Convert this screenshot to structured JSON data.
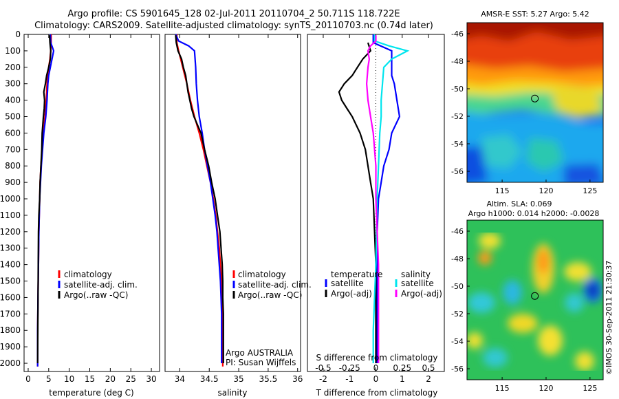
{
  "header": {
    "line1": "Argo profile: CS 5901645_128 02-Jul-2011 20110704_2 50.711S 118.722E",
    "line2": "Climatology: CARS2009. Satellite-adjusted climatology: synTS_20110703.nc (0.74d later)"
  },
  "colors": {
    "climatology": "#ff0000",
    "satellite": "#0000ff",
    "argo": "#000000",
    "sal_satellite": "#00e5ee",
    "sal_argo": "#ff00ff"
  },
  "legend_profile": {
    "climatology": "climatology",
    "satellite": "satellite-adj. clim.",
    "argo": "Argo(..raw -QC)"
  },
  "legend_diff": {
    "temperature": "temperature",
    "salinity": "salinity",
    "satellite": "satellite",
    "argo_adj": "Argo(-adj)"
  },
  "salinity_note": {
    "line1": "Argo AUSTRALIA",
    "line2": "PI: Susan Wijffels"
  },
  "map_sst": {
    "title": "AMSR-E SST: 5.27 Argo: 5.42"
  },
  "map_sla": {
    "title1": "Altim. SLA: 0.069",
    "title2": "Argo h1000: 0.014 h2000: -0.0028"
  },
  "credit": "©IMOS 30-Sep-2011 21:30:37",
  "chart_data": [
    {
      "type": "line",
      "xlabel": "temperature (deg C)",
      "xlim": [
        -1,
        32
      ],
      "ylim": [
        2050,
        0
      ],
      "x_ticks": [
        "0",
        "5",
        "10",
        "15",
        "20",
        "25",
        "30"
      ],
      "y_ticks": [
        "0",
        "100",
        "200",
        "300",
        "400",
        "500",
        "600",
        "700",
        "800",
        "900",
        "1000",
        "1100",
        "1200",
        "1300",
        "1400",
        "1500",
        "1600",
        "1700",
        "1800",
        "1900",
        "2000"
      ],
      "series": [
        {
          "name": "climatology",
          "color": "#ff0000",
          "points": [
            [
              5.6,
              0
            ],
            [
              5.6,
              50
            ],
            [
              5.5,
              100
            ],
            [
              5.3,
              150
            ],
            [
              5.0,
              200
            ],
            [
              4.8,
              250
            ],
            [
              4.6,
              300
            ],
            [
              4.4,
              400
            ],
            [
              4.1,
              500
            ],
            [
              3.7,
              600
            ],
            [
              3.4,
              700
            ],
            [
              3.1,
              800
            ],
            [
              2.9,
              900
            ],
            [
              2.8,
              1000
            ],
            [
              2.6,
              1200
            ],
            [
              2.5,
              1400
            ],
            [
              2.4,
              1600
            ],
            [
              2.3,
              1800
            ],
            [
              2.3,
              2020
            ]
          ]
        },
        {
          "name": "satellite-adj. clim.",
          "color": "#0000ff",
          "points": [
            [
              5.4,
              0
            ],
            [
              5.5,
              50
            ],
            [
              6.2,
              100
            ],
            [
              5.8,
              150
            ],
            [
              5.4,
              200
            ],
            [
              5.0,
              250
            ],
            [
              4.8,
              300
            ],
            [
              4.6,
              400
            ],
            [
              4.3,
              500
            ],
            [
              3.8,
              600
            ],
            [
              3.5,
              700
            ],
            [
              3.2,
              800
            ],
            [
              3.0,
              900
            ],
            [
              2.8,
              1000
            ],
            [
              2.6,
              1200
            ],
            [
              2.5,
              1400
            ],
            [
              2.4,
              1600
            ],
            [
              2.3,
              1800
            ],
            [
              2.3,
              2020
            ]
          ]
        },
        {
          "name": "Argo(..raw -QC)",
          "color": "#000000",
          "points": [
            [
              5.2,
              5
            ],
            [
              5.3,
              50
            ],
            [
              5.5,
              100
            ],
            [
              5.4,
              150
            ],
            [
              5.0,
              200
            ],
            [
              4.5,
              250
            ],
            [
              4.2,
              300
            ],
            [
              3.8,
              350
            ],
            [
              4.0,
              400
            ],
            [
              3.9,
              450
            ],
            [
              3.7,
              500
            ],
            [
              3.4,
              600
            ],
            [
              3.3,
              700
            ],
            [
              3.1,
              800
            ],
            [
              2.9,
              900
            ],
            [
              2.8,
              1000
            ],
            [
              2.6,
              1100
            ],
            [
              2.5,
              1200
            ],
            [
              2.45,
              1400
            ],
            [
              2.4,
              1600
            ],
            [
              2.35,
              1800
            ],
            [
              2.3,
              2000
            ]
          ]
        }
      ],
      "legend_position": "lower-center"
    },
    {
      "type": "line",
      "xlabel": "salinity",
      "xlim": [
        33.75,
        36.05
      ],
      "ylim": [
        2050,
        0
      ],
      "x_ticks": [
        "34",
        "34.5",
        "35",
        "35.5",
        "36"
      ],
      "series": [
        {
          "name": "climatology",
          "color": "#ff0000",
          "points": [
            [
              33.95,
              0
            ],
            [
              33.95,
              50
            ],
            [
              33.98,
              100
            ],
            [
              34.05,
              200
            ],
            [
              34.12,
              300
            ],
            [
              34.18,
              400
            ],
            [
              34.25,
              500
            ],
            [
              34.33,
              600
            ],
            [
              34.4,
              700
            ],
            [
              34.46,
              800
            ],
            [
              34.52,
              900
            ],
            [
              34.57,
              1000
            ],
            [
              34.61,
              1100
            ],
            [
              34.64,
              1200
            ],
            [
              34.67,
              1300
            ],
            [
              34.69,
              1400
            ],
            [
              34.71,
              1500
            ],
            [
              34.72,
              1600
            ],
            [
              34.73,
              1700
            ],
            [
              34.73,
              1800
            ],
            [
              34.73,
              1900
            ],
            [
              34.73,
              2020
            ]
          ]
        },
        {
          "name": "satellite-adj. clim.",
          "color": "#0000ff",
          "points": [
            [
              33.93,
              0
            ],
            [
              33.98,
              40
            ],
            [
              34.15,
              70
            ],
            [
              34.25,
              100
            ],
            [
              34.27,
              200
            ],
            [
              34.28,
              300
            ],
            [
              34.3,
              400
            ],
            [
              34.33,
              500
            ],
            [
              34.38,
              600
            ],
            [
              34.42,
              700
            ],
            [
              34.47,
              800
            ],
            [
              34.52,
              900
            ],
            [
              34.56,
              1000
            ],
            [
              34.6,
              1100
            ],
            [
              34.63,
              1200
            ],
            [
              34.65,
              1300
            ],
            [
              34.67,
              1400
            ],
            [
              34.69,
              1500
            ],
            [
              34.7,
              1600
            ],
            [
              34.71,
              1700
            ],
            [
              34.71,
              1800
            ],
            [
              34.71,
              1900
            ],
            [
              34.71,
              2000
            ]
          ]
        },
        {
          "name": "Argo(..raw -QC)",
          "color": "#000000",
          "points": [
            [
              33.93,
              5
            ],
            [
              33.94,
              50
            ],
            [
              33.97,
              100
            ],
            [
              34.03,
              150
            ],
            [
              34.06,
              200
            ],
            [
              34.1,
              250
            ],
            [
              34.12,
              300
            ],
            [
              34.14,
              350
            ],
            [
              34.17,
              400
            ],
            [
              34.2,
              450
            ],
            [
              34.24,
              500
            ],
            [
              34.3,
              550
            ],
            [
              34.36,
              600
            ],
            [
              34.42,
              700
            ],
            [
              34.49,
              800
            ],
            [
              34.54,
              900
            ],
            [
              34.6,
              1000
            ],
            [
              34.64,
              1100
            ],
            [
              34.68,
              1200
            ],
            [
              34.7,
              1300
            ],
            [
              34.72,
              1400
            ],
            [
              34.73,
              1500
            ],
            [
              34.73,
              1600
            ],
            [
              34.74,
              1700
            ],
            [
              34.74,
              1800
            ],
            [
              34.74,
              1900
            ],
            [
              34.74,
              2000
            ]
          ]
        }
      ],
      "legend_position": "lower-center"
    },
    {
      "type": "line",
      "xlabel": "T difference from climatology",
      "xlabel_top": "S difference from climatology",
      "xlim": [
        -2.6,
        2.6
      ],
      "ylim": [
        2050,
        0
      ],
      "x_ticks_t": [
        "-2",
        "-1",
        "0",
        "1",
        "2"
      ],
      "x_ticks_s": [
        "-0.5",
        "-0.25",
        "0",
        "0.25",
        "0.5"
      ],
      "series": [
        {
          "name": "temperature satellite",
          "color": "#0000ff",
          "points": [
            [
              -0.1,
              0
            ],
            [
              -0.1,
              50
            ],
            [
              0.6,
              100
            ],
            [
              0.6,
              150
            ],
            [
              0.6,
              200
            ],
            [
              0.6,
              250
            ],
            [
              0.7,
              300
            ],
            [
              0.8,
              400
            ],
            [
              0.9,
              500
            ],
            [
              0.6,
              600
            ],
            [
              0.5,
              700
            ],
            [
              0.3,
              800
            ],
            [
              0.2,
              900
            ],
            [
              0.1,
              1000
            ],
            [
              0.05,
              1200
            ],
            [
              0.05,
              1400
            ],
            [
              0.05,
              1600
            ],
            [
              0.05,
              1800
            ],
            [
              0.05,
              2000
            ]
          ]
        },
        {
          "name": "temperature Argo(-adj)",
          "color": "#000000",
          "points": [
            [
              -0.3,
              50
            ],
            [
              -0.2,
              100
            ],
            [
              -0.5,
              150
            ],
            [
              -0.7,
              200
            ],
            [
              -0.9,
              250
            ],
            [
              -1.2,
              300
            ],
            [
              -1.4,
              350
            ],
            [
              -1.3,
              400
            ],
            [
              -1.1,
              450
            ],
            [
              -0.9,
              500
            ],
            [
              -0.6,
              600
            ],
            [
              -0.4,
              700
            ],
            [
              -0.3,
              800
            ],
            [
              -0.2,
              900
            ],
            [
              -0.1,
              1000
            ],
            [
              -0.05,
              1200
            ],
            [
              0,
              1400
            ],
            [
              0,
              1600
            ],
            [
              0,
              1800
            ],
            [
              0,
              2000
            ]
          ]
        },
        {
          "name": "salinity satellite",
          "color": "#00e5ee",
          "points": [
            [
              -0.05,
              0
            ],
            [
              -0.05,
              40
            ],
            [
              0.5,
              70
            ],
            [
              1.2,
              100
            ],
            [
              0.6,
              150
            ],
            [
              0.3,
              200
            ],
            [
              0.25,
              300
            ],
            [
              0.2,
              400
            ],
            [
              0.2,
              500
            ],
            [
              0.15,
              600
            ],
            [
              0.1,
              800
            ],
            [
              0.05,
              1000
            ],
            [
              0,
              1400
            ],
            [
              -0.05,
              1600
            ],
            [
              -0.1,
              1800
            ],
            [
              -0.1,
              2000
            ]
          ]
        },
        {
          "name": "salinity Argo(-adj)",
          "color": "#ff00ff",
          "points": [
            [
              0,
              5
            ],
            [
              0,
              40
            ],
            [
              -0.2,
              70
            ],
            [
              -0.3,
              100
            ],
            [
              -0.25,
              150
            ],
            [
              -0.3,
              200
            ],
            [
              -0.35,
              300
            ],
            [
              -0.3,
              400
            ],
            [
              -0.2,
              500
            ],
            [
              -0.1,
              600
            ],
            [
              -0.05,
              700
            ],
            [
              0,
              800
            ],
            [
              0,
              1000
            ],
            [
              0.05,
              1200
            ],
            [
              0.1,
              1400
            ],
            [
              0.1,
              1600
            ],
            [
              0.1,
              1800
            ],
            [
              0.1,
              2000
            ]
          ]
        }
      ],
      "legend_position": "lower-center"
    },
    {
      "type": "heatmap",
      "title": "AMSR-E SST: 5.27 Argo: 5.42",
      "xlim": [
        111,
        126.5
      ],
      "ylim": [
        -56.8,
        -45.2
      ],
      "x_ticks": [
        "115",
        "120",
        "125"
      ],
      "y_ticks": [
        "-46",
        "-48",
        "-50",
        "-52",
        "-54",
        "-56"
      ],
      "marker": {
        "lon": 118.722,
        "lat": -50.711
      }
    },
    {
      "type": "heatmap",
      "title": "Altim. SLA: 0.069",
      "subtitle": "Argo h1000: 0.014 h2000: -0.0028",
      "xlim": [
        111,
        126.5
      ],
      "ylim": [
        -56.8,
        -45.2
      ],
      "x_ticks": [
        "115",
        "120",
        "125"
      ],
      "y_ticks": [
        "-46",
        "-48",
        "-50",
        "-52",
        "-54",
        "-56"
      ],
      "marker": {
        "lon": 118.722,
        "lat": -50.711
      }
    }
  ]
}
